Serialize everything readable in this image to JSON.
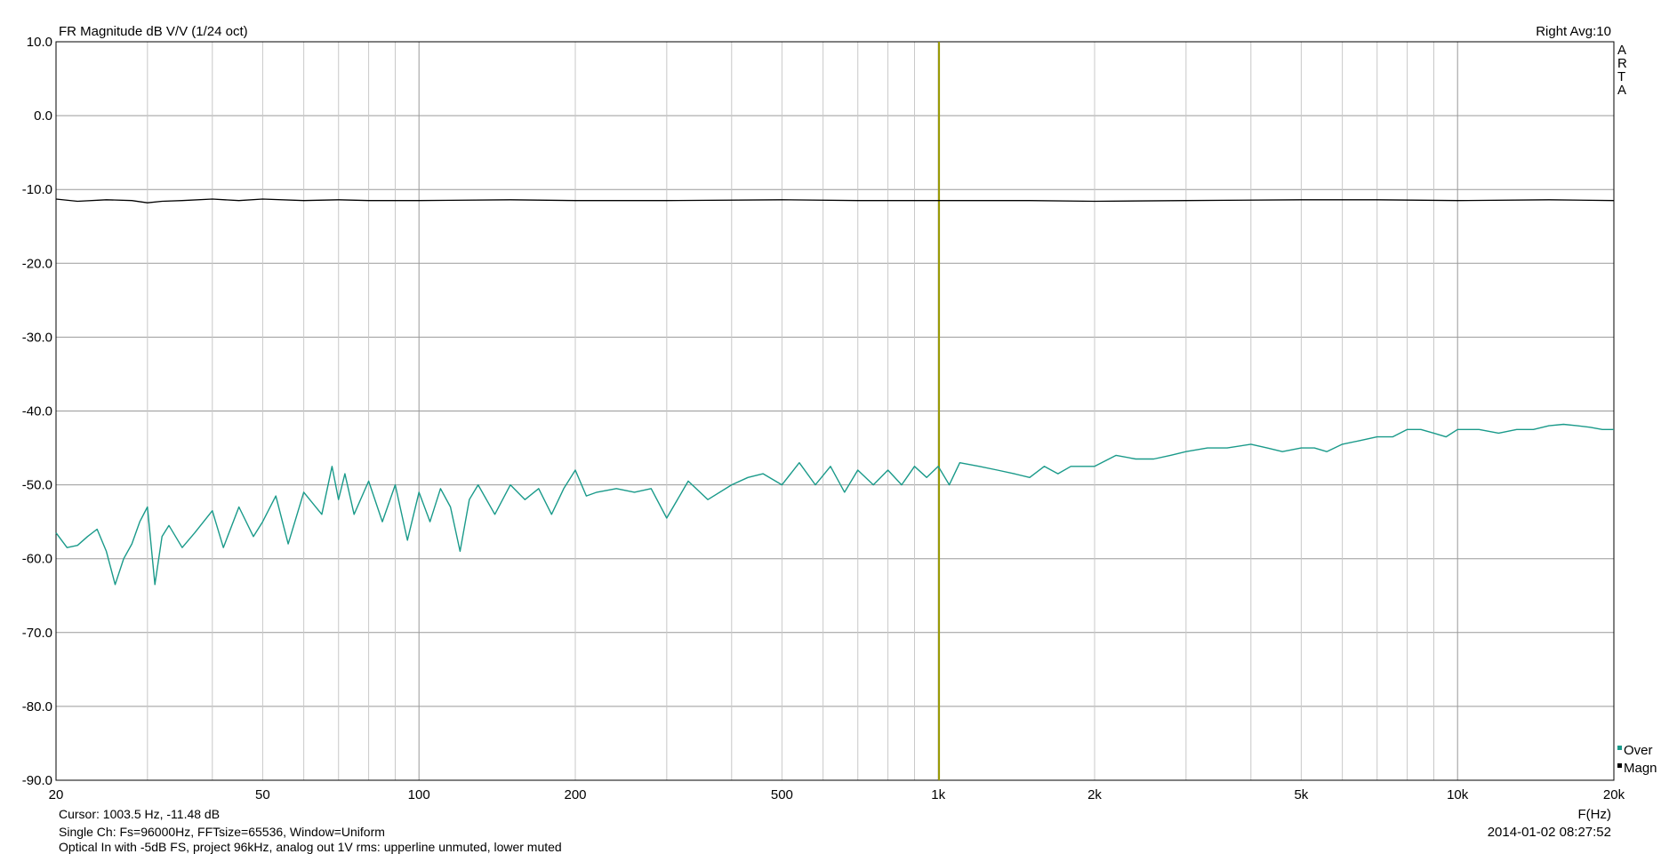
{
  "header": {
    "title": "FR Magnitude dB V/V (1/24 oct)",
    "right_info": "Right  Avg:10",
    "brand_letters": [
      "A",
      "R",
      "T",
      "A"
    ]
  },
  "footer": {
    "cursor": "Cursor:  1003.5 Hz, -11.48 dB",
    "line1": "Single Ch: Fs=96000Hz, FFTsize=65536, Window=Uniform",
    "line2": "Optical In with -5dB FS, project 96kHz, analog out 1V rms: upperline unmuted, lower muted",
    "datetime": "2014-01-02  08:27:52"
  },
  "colors": {
    "over": "#1a9a8a",
    "magn": "#000000",
    "cursor": "#9a9a00",
    "grid": "#c8c8c8",
    "grid_major": "#9a9a9a"
  },
  "chart_data": {
    "type": "line",
    "title": "FR Magnitude dB V/V (1/24 oct)",
    "xlabel": "F(Hz)",
    "ylabel": "",
    "xscale": "log",
    "xlim": [
      20,
      20000
    ],
    "ylim": [
      -90,
      10
    ],
    "x_ticks": [
      20,
      50,
      100,
      200,
      500,
      1000,
      2000,
      5000,
      10000,
      20000
    ],
    "x_tick_labels": [
      "20",
      "50",
      "100",
      "200",
      "500",
      "1k",
      "2k",
      "5k",
      "10k",
      "20k"
    ],
    "y_ticks": [
      10,
      0,
      -10,
      -20,
      -30,
      -40,
      -50,
      -60,
      -70,
      -80,
      -90
    ],
    "y_tick_labels": [
      "10.0",
      "0.0",
      "-10.0",
      "-20.0",
      "-30.0",
      "-40.0",
      "-50.0",
      "-60.0",
      "-70.0",
      "-80.0",
      "-90.0"
    ],
    "grid": true,
    "legend_position": "bottom-right",
    "cursor_x": 1003.5,
    "series": [
      {
        "name": "Over",
        "x": [
          20,
          21,
          22,
          23,
          24,
          25,
          26,
          27,
          28,
          29,
          30,
          31,
          32,
          33,
          35,
          37,
          40,
          42,
          45,
          48,
          50,
          53,
          56,
          60,
          65,
          68,
          70,
          72,
          75,
          80,
          85,
          90,
          95,
          100,
          105,
          110,
          115,
          120,
          125,
          130,
          140,
          150,
          160,
          170,
          180,
          190,
          200,
          210,
          220,
          240,
          260,
          280,
          300,
          330,
          360,
          400,
          430,
          460,
          500,
          540,
          580,
          620,
          660,
          700,
          750,
          800,
          850,
          900,
          950,
          1000,
          1050,
          1100,
          1200,
          1300,
          1400,
          1500,
          1600,
          1700,
          1800,
          2000,
          2200,
          2400,
          2600,
          2800,
          3000,
          3300,
          3600,
          4000,
          4300,
          4600,
          5000,
          5300,
          5600,
          6000,
          6500,
          7000,
          7500,
          8000,
          8500,
          9000,
          9500,
          10000,
          11000,
          12000,
          13000,
          14000,
          15000,
          16000,
          17000,
          18000,
          19000,
          20000
        ],
        "y": [
          -56.5,
          -58.5,
          -58.2,
          -57,
          -56,
          -59,
          -63.5,
          -60,
          -58,
          -55,
          -53,
          -63.5,
          -57,
          -55.5,
          -58.5,
          -56.5,
          -53.5,
          -58.5,
          -53,
          -57,
          -55,
          -51.5,
          -58,
          -51,
          -54,
          -47.5,
          -52,
          -48.5,
          -54,
          -49.5,
          -55,
          -50,
          -57.5,
          -51,
          -55,
          -50.5,
          -53,
          -59,
          -52,
          -50,
          -54,
          -50,
          -52,
          -50.5,
          -54,
          -50.5,
          -48,
          -51.5,
          -51,
          -50.5,
          -51,
          -50.5,
          -54.5,
          -49.5,
          -52,
          -50,
          -49,
          -48.5,
          -50,
          -47,
          -50,
          -47.5,
          -51,
          -48,
          -50,
          -48,
          -50,
          -47.5,
          -49,
          -47.5,
          -50,
          -47,
          -47.5,
          -48,
          -48.5,
          -49,
          -47.5,
          -48.5,
          -47.5,
          -47.5,
          -46,
          -46.5,
          -46.5,
          -46,
          -45.5,
          -45,
          -45,
          -44.5,
          -45,
          -45.5,
          -45,
          -45,
          -45.5,
          -44.5,
          -44,
          -43.5,
          -43.5,
          -42.5,
          -42.5,
          -43,
          -43.5,
          -42.5,
          -42.5,
          -43,
          -42.5,
          -42.5,
          -42,
          -41.8,
          -42,
          -42.2,
          -42.5,
          -42.5
        ]
      },
      {
        "name": "Magn",
        "x": [
          20,
          22,
          25,
          28,
          30,
          32,
          35,
          40,
          45,
          50,
          60,
          70,
          80,
          100,
          150,
          200,
          300,
          500,
          700,
          1000,
          1500,
          2000,
          3000,
          5000,
          7000,
          10000,
          15000,
          20000
        ],
        "y": [
          -11.3,
          -11.6,
          -11.4,
          -11.5,
          -11.8,
          -11.6,
          -11.5,
          -11.3,
          -11.5,
          -11.3,
          -11.5,
          -11.4,
          -11.5,
          -11.5,
          -11.4,
          -11.5,
          -11.5,
          -11.4,
          -11.5,
          -11.5,
          -11.5,
          -11.6,
          -11.5,
          -11.4,
          -11.4,
          -11.5,
          -11.4,
          -11.5
        ]
      }
    ]
  }
}
